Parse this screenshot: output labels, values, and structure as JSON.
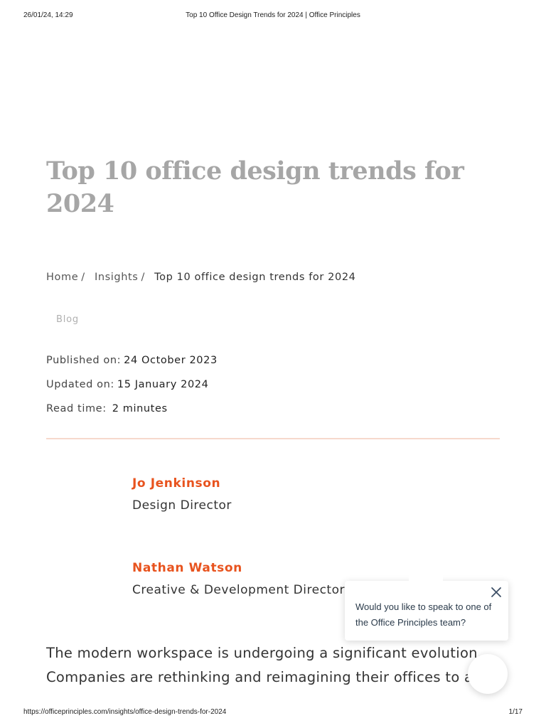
{
  "print_header": {
    "datetime": "26/01/24, 14:29",
    "page_title": "Top 10 Office Design Trends for 2024 | Office Principles"
  },
  "article": {
    "title_line1": "Top 10 office design trends for",
    "title_line2": "2024",
    "breadcrumb": {
      "items": [
        "Home",
        "Insights"
      ],
      "separator": "/",
      "current": "Top 10 office design trends for 2024"
    },
    "category": "Blog",
    "meta": {
      "published_label": "Published on:",
      "published_value": "24 October 2023",
      "updated_label": "Updated on:",
      "updated_value": "15 January 2024",
      "read_label": "Read time:",
      "read_value": "2 minutes"
    },
    "authors": [
      {
        "name": "Jo Jenkinson",
        "role": "Design Director"
      },
      {
        "name": "Nathan Watson",
        "role": "Creative & Development Director"
      }
    ],
    "intro_line1": "The modern workspace is undergoing a significant evolution.",
    "intro_line2": "Companies are rethinking and reimagining their offices to align"
  },
  "chat_widget": {
    "message": "Would you like to speak to one of the Office Principles team?",
    "close_icon": "close-icon",
    "launcher_icon": "chat-launcher-icon",
    "close_color": "#3d4f66"
  },
  "print_footer": {
    "url": "https://officeprinciples.com/insights/office-design-trends-for-2024",
    "page_number": "1/17"
  },
  "colors": {
    "title": "#a6a6a6",
    "accent": "#e8531e",
    "divider": "#f6d9cc"
  }
}
